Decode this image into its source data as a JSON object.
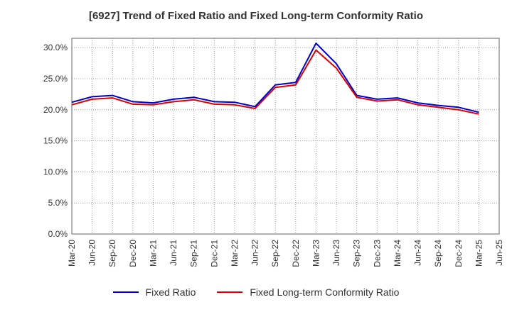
{
  "chart_data": {
    "type": "line",
    "title": "[6927]  Trend of Fixed Ratio and Fixed Long-term Conformity Ratio",
    "xlabel": "",
    "ylabel": "",
    "ylim": [
      0,
      31.5
    ],
    "y_ticks": [
      0,
      5,
      10,
      15,
      20,
      25,
      30
    ],
    "y_tick_labels": [
      "0.0%",
      "5.0%",
      "10.0%",
      "15.0%",
      "20.0%",
      "25.0%",
      "30.0%"
    ],
    "categories": [
      "Mar-20",
      "Jun-20",
      "Sep-20",
      "Dec-20",
      "Mar-21",
      "Jun-21",
      "Sep-21",
      "Dec-21",
      "Mar-22",
      "Jun-22",
      "Sep-22",
      "Dec-22",
      "Mar-23",
      "Jun-23",
      "Sep-23",
      "Dec-23",
      "Mar-24",
      "Jun-24",
      "Sep-24",
      "Dec-24",
      "Mar-25",
      "Jun-25"
    ],
    "grid": true,
    "legend_position": "bottom",
    "series": [
      {
        "name": "Fixed Ratio",
        "color": "#0000cc",
        "values": [
          21.2,
          22.1,
          22.3,
          21.3,
          21.1,
          21.7,
          22.0,
          21.3,
          21.2,
          20.5,
          24.0,
          24.4,
          30.7,
          27.4,
          22.3,
          21.7,
          21.9,
          21.1,
          20.7,
          20.4,
          19.6,
          null
        ]
      },
      {
        "name": "Fixed Long-term Conformity Ratio",
        "color": "#dd0000",
        "values": [
          20.8,
          21.7,
          21.9,
          20.9,
          20.8,
          21.3,
          21.6,
          20.9,
          20.8,
          20.2,
          23.6,
          24.0,
          29.6,
          26.7,
          22.0,
          21.4,
          21.6,
          20.8,
          20.4,
          20.0,
          19.3,
          null
        ]
      }
    ]
  }
}
